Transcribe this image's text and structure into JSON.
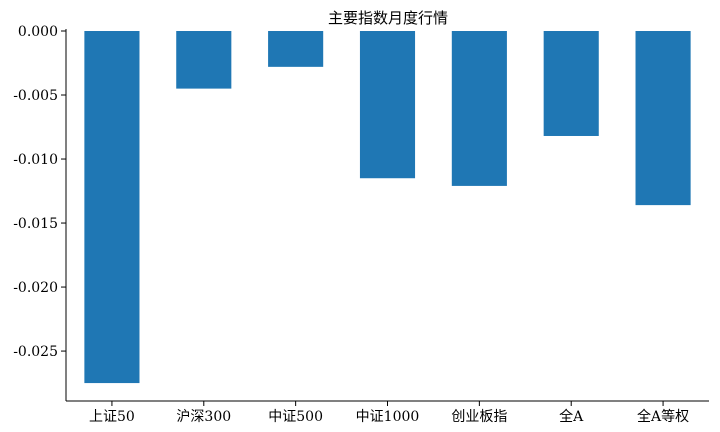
{
  "chart_data": {
    "type": "bar",
    "title": "主要指数月度行情",
    "categories": [
      "上证50",
      "沪深300",
      "中证500",
      "中证1000",
      "创业板指",
      "全A",
      "全A等权"
    ],
    "values": [
      -0.0275,
      -0.0045,
      -0.0028,
      -0.0115,
      -0.0121,
      -0.0082,
      -0.0136
    ],
    "ylim": [
      -0.0289,
      0.0
    ],
    "yticks": [
      0.0,
      -0.005,
      -0.01,
      -0.015,
      -0.02,
      -0.025
    ],
    "ytick_labels": [
      "0.000",
      "-0.005",
      "-0.010",
      "-0.015",
      "-0.020",
      "-0.025"
    ],
    "xlabel": "",
    "ylabel": "",
    "grid": false,
    "bar_color": "#1f77b4"
  }
}
